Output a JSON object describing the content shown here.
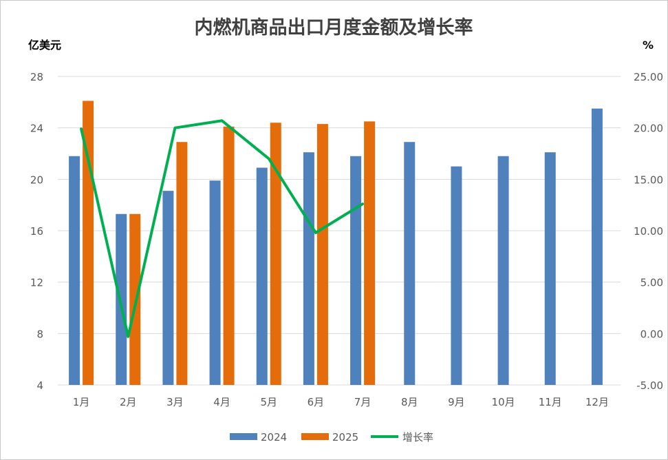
{
  "chart_data": {
    "type": "bar",
    "title": "内燃机商品出口月度金额及增长率",
    "left_axis_unit": "亿美元",
    "right_axis_unit": "%",
    "categories": [
      "1月",
      "2月",
      "3月",
      "4月",
      "5月",
      "6月",
      "7月",
      "8月",
      "9月",
      "10月",
      "11月",
      "12月"
    ],
    "series": [
      {
        "name": "2024",
        "type": "bar",
        "axis": "left",
        "color": "#4f81bd",
        "values": [
          21.8,
          17.3,
          19.1,
          19.9,
          20.9,
          22.1,
          21.8,
          22.9,
          21.0,
          21.8,
          22.1,
          25.5
        ]
      },
      {
        "name": "2025",
        "type": "bar",
        "axis": "left",
        "color": "#e46c0a",
        "values": [
          26.1,
          17.3,
          22.9,
          24.1,
          24.4,
          24.3,
          24.5,
          null,
          null,
          null,
          null,
          null
        ]
      },
      {
        "name": "增长率",
        "type": "line",
        "axis": "right",
        "color": "#00b050",
        "values": [
          19.9,
          -0.3,
          20.0,
          20.7,
          17.0,
          9.8,
          12.6,
          null,
          null,
          null,
          null,
          null
        ]
      }
    ],
    "y_left": {
      "min": 4,
      "max": 28,
      "ticks": [
        "4",
        "8",
        "12",
        "16",
        "20",
        "24",
        "28"
      ]
    },
    "y_right": {
      "min": -5,
      "max": 25,
      "ticks": [
        "-5.00",
        "0.00",
        "5.00",
        "10.00",
        "15.00",
        "20.00",
        "25.00"
      ]
    },
    "grid": true,
    "legend_position": "bottom"
  }
}
